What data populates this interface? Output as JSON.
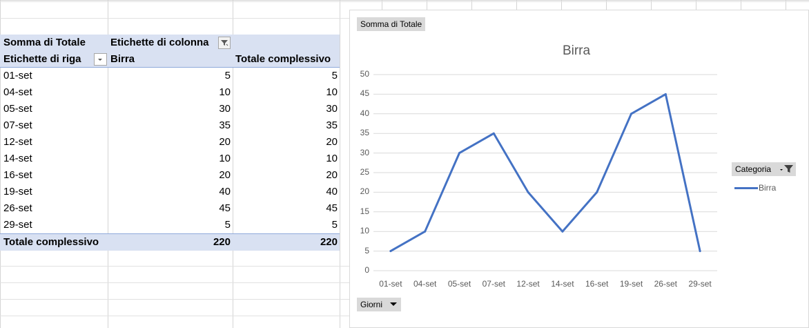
{
  "pivot": {
    "value_field": "Somma di Totale",
    "col_labels": "Etichette di colonna",
    "row_labels": "Etichette di riga",
    "series_header": "Birra",
    "grand_total_header": "Totale complessivo",
    "rows": [
      {
        "label": "01-set",
        "birra": "5",
        "total": "5"
      },
      {
        "label": "04-set",
        "birra": "10",
        "total": "10"
      },
      {
        "label": "05-set",
        "birra": "30",
        "total": "30"
      },
      {
        "label": "07-set",
        "birra": "35",
        "total": "35"
      },
      {
        "label": "12-set",
        "birra": "20",
        "total": "20"
      },
      {
        "label": "14-set",
        "birra": "10",
        "total": "10"
      },
      {
        "label": "16-set",
        "birra": "20",
        "total": "20"
      },
      {
        "label": "19-set",
        "birra": "40",
        "total": "40"
      },
      {
        "label": "26-set",
        "birra": "45",
        "total": "45"
      },
      {
        "label": "29-set",
        "birra": "5",
        "total": "5"
      }
    ],
    "grand_total": {
      "label": "Totale complessivo",
      "birra": "220",
      "total": "220"
    }
  },
  "chart": {
    "value_button": "Somma di Totale",
    "axis_button": "Giorni",
    "legend_button": "Categoria",
    "accent": "#4472c4"
  },
  "chart_data": {
    "type": "line",
    "title": "Birra",
    "categories": [
      "01-set",
      "04-set",
      "05-set",
      "07-set",
      "12-set",
      "14-set",
      "16-set",
      "19-set",
      "26-set",
      "29-set"
    ],
    "series": [
      {
        "name": "Birra",
        "values": [
          5,
          10,
          30,
          35,
          20,
          10,
          20,
          40,
          45,
          5
        ]
      }
    ],
    "ylim": [
      0,
      50
    ],
    "yticks": [
      0,
      5,
      10,
      15,
      20,
      25,
      30,
      35,
      40,
      45,
      50
    ],
    "grid": true,
    "legend": "right"
  }
}
